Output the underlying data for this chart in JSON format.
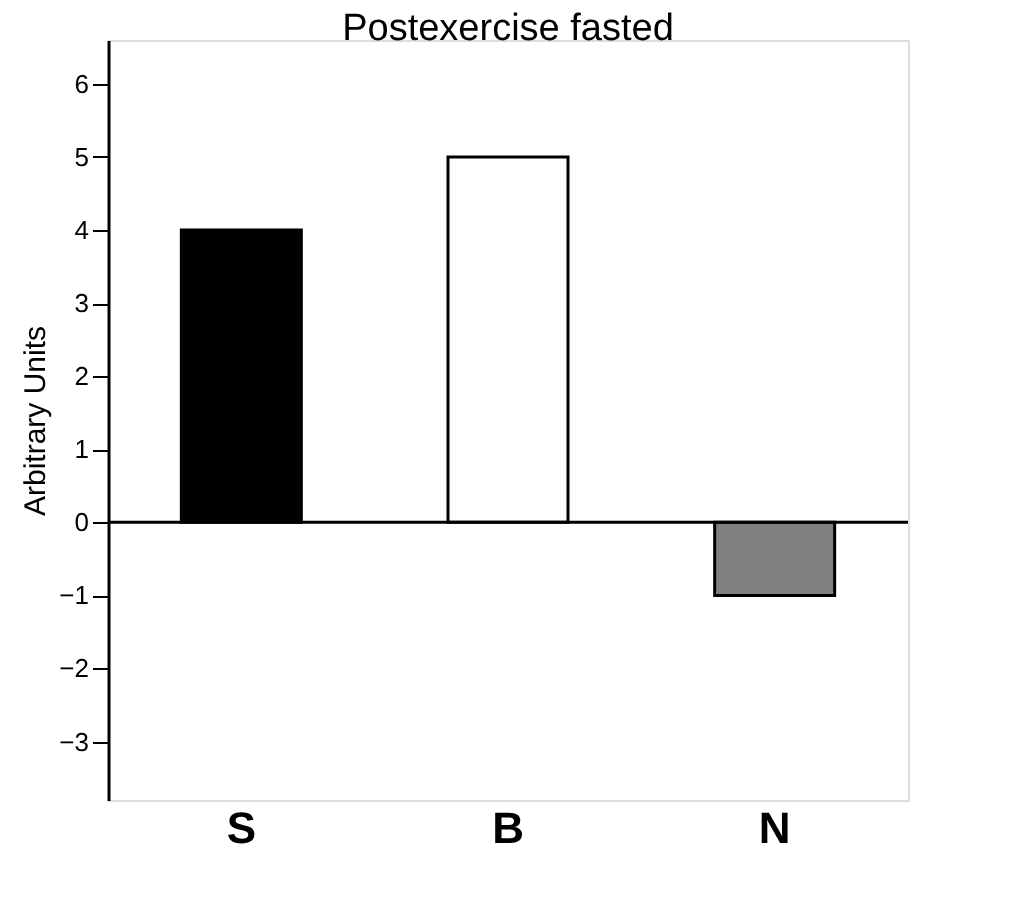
{
  "chart_data": {
    "type": "bar",
    "title": "Postexercise fasted",
    "ylabel": "Arbitrary Units",
    "categories": [
      "S",
      "B",
      "N"
    ],
    "values": [
      4,
      5,
      -1
    ],
    "colors": [
      "#000000",
      "#ffffff",
      "#808080"
    ],
    "ylim": [
      -3.8,
      6.6
    ],
    "yticks": [
      -3,
      -2,
      -1,
      0,
      1,
      2,
      3,
      4,
      5,
      6
    ],
    "grid": false,
    "ref_lines": [
      {
        "axis": "y",
        "value": 0
      }
    ]
  }
}
